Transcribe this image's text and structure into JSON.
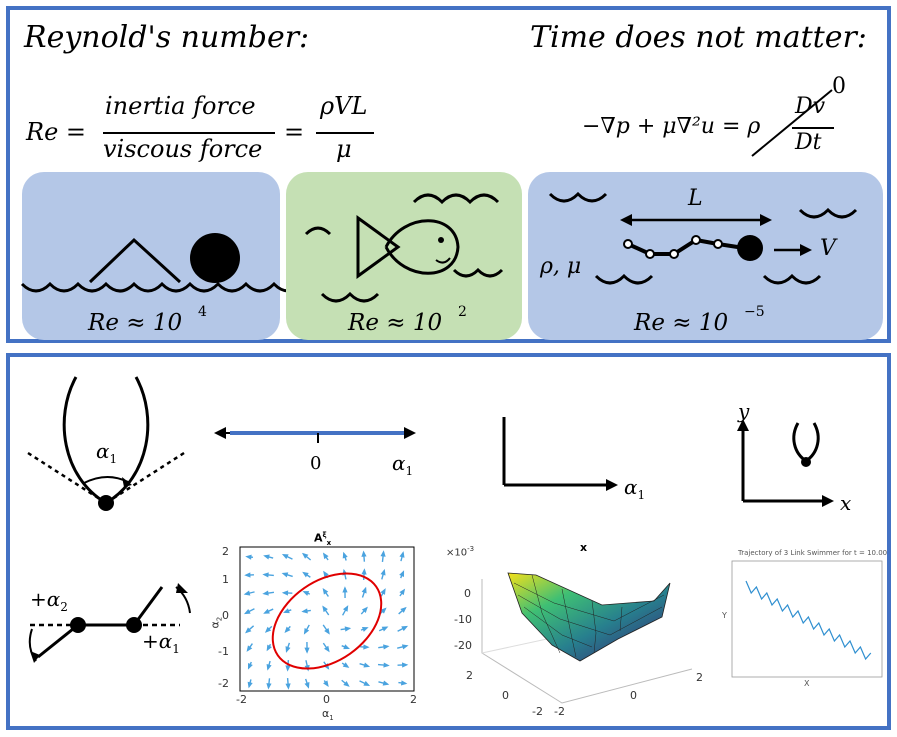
{
  "top": {
    "reynolds_title": "Reynold's number:",
    "time_title": "Time does not matter:",
    "re_eq": "Re =",
    "frac1_num": "inertia force",
    "frac1_den": "viscous force",
    "eq2": "=",
    "frac2_num": "ρVL",
    "frac2_den": "μ",
    "ns_lhs": "−∇p + μ∇²u = ρ",
    "ns_num": "Dv",
    "ns_den": "Dt",
    "ns_zero": "0",
    "box1_label": "Re ≈ 10",
    "box1_exp": "4",
    "box2_label": "Re ≈ 10",
    "box2_exp": "2",
    "box3_label": "Re ≈ 10",
    "box3_exp": "−5",
    "L_label": "L",
    "V_label": "V",
    "rho_mu_label": "ρ, μ",
    "colors": {
      "blue_box": "#b4c7e7",
      "green_box": "#c5e0b4",
      "border": "#4472c4"
    }
  },
  "bottom": {
    "alpha1_label": "α",
    "alpha1_sub": "1",
    "zero_label": "0",
    "axis_alpha_label": "α",
    "axis_alpha_sub": "1",
    "line_alpha_label": "α",
    "line_alpha_sub": "1",
    "y_label": "y",
    "x_label": "x",
    "plus_alpha2": "+α",
    "plus_alpha2_sub": "2",
    "plus_alpha1": "+α",
    "plus_alpha1_sub": "1",
    "quiver": {
      "title": "A",
      "title_sup": "ξ",
      "title_sub": "x",
      "xlabel": "α",
      "xlabel_sub": "1",
      "ylabel": "α",
      "ylabel_sub": "2",
      "xticks": [
        "-2",
        "0",
        "2"
      ],
      "yticks": [
        "2",
        "1",
        "0",
        "-1",
        "-2"
      ]
    },
    "surface": {
      "title": "x",
      "scale": "×10",
      "scale_exp": "-3",
      "zticks": [
        "0",
        "-10",
        "-20"
      ],
      "yticks": [
        "2",
        "0",
        "-2"
      ],
      "xticks": [
        "-2",
        "0",
        "2"
      ]
    },
    "trajectory": {
      "title": "Trajectory of 3 Link Swimmer for t = 10.00",
      "ylabel": "Y",
      "xlabel": "X"
    }
  }
}
